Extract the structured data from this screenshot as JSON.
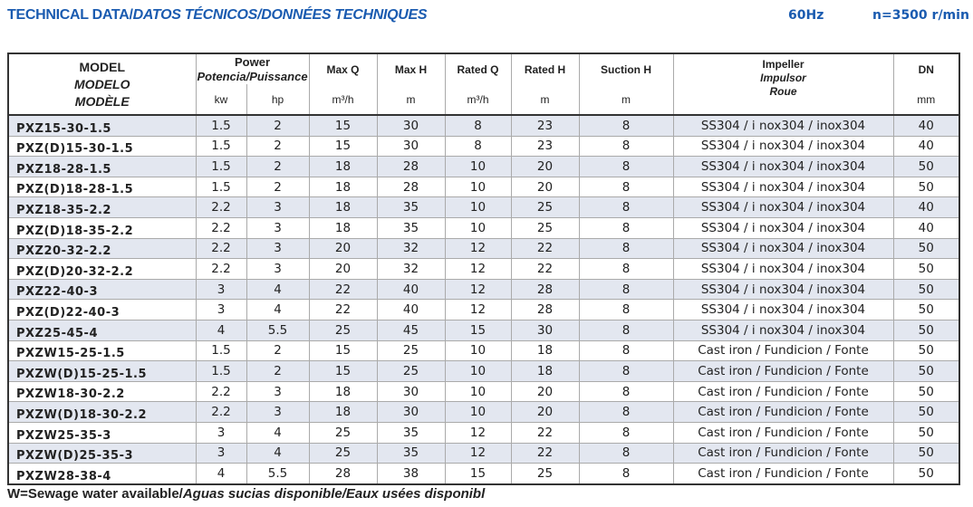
{
  "title": {
    "main": "TECHNICAL DATA/",
    "italic": "DATOS TÉCNICOS/DONNÉES TECHNIQUES"
  },
  "frequency": "60Hz",
  "speed": "n=3500 r/min",
  "headers": {
    "model": [
      "MODEL",
      "MODELO",
      "MODÈLE"
    ],
    "power": [
      "Power",
      "Potencia/Puissance"
    ],
    "kw": "kw",
    "hp": "hp",
    "max_q": "Max Q",
    "max_q_unit": "m³/h",
    "max_h": "Max H",
    "max_h_unit": "m",
    "rated_q": "Rated Q",
    "rated_q_unit": "m³/h",
    "rated_h": "Rated H",
    "rated_h_unit": "m",
    "suction_h": "Suction H",
    "suction_h_unit": "m",
    "impeller": [
      "Impeller",
      "Impulsor",
      "Roue"
    ],
    "dn": "DN",
    "dn_unit": "mm"
  },
  "rows": [
    [
      "PXZ15-30-1.5",
      "1.5",
      "2",
      "15",
      "30",
      "8",
      "23",
      "8",
      "SS304 / i nox304 / inox304",
      "40"
    ],
    [
      "PXZ(D)15-30-1.5",
      "1.5",
      "2",
      "15",
      "30",
      "8",
      "23",
      "8",
      "SS304 / i nox304 / inox304",
      "40"
    ],
    [
      "PXZ18-28-1.5",
      "1.5",
      "2",
      "18",
      "28",
      "10",
      "20",
      "8",
      "SS304 / i nox304 / inox304",
      "50"
    ],
    [
      "PXZ(D)18-28-1.5",
      "1.5",
      "2",
      "18",
      "28",
      "10",
      "20",
      "8",
      "SS304 / i nox304 / inox304",
      "50"
    ],
    [
      "PXZ18-35-2.2",
      "2.2",
      "3",
      "18",
      "35",
      "10",
      "25",
      "8",
      "SS304 / i nox304 / inox304",
      "40"
    ],
    [
      "PXZ(D)18-35-2.2",
      "2.2",
      "3",
      "18",
      "35",
      "10",
      "25",
      "8",
      "SS304 / i nox304 / inox304",
      "40"
    ],
    [
      "PXZ20-32-2.2",
      "2.2",
      "3",
      "20",
      "32",
      "12",
      "22",
      "8",
      "SS304 / i nox304 / inox304",
      "50"
    ],
    [
      "PXZ(D)20-32-2.2",
      "2.2",
      "3",
      "20",
      "32",
      "12",
      "22",
      "8",
      "SS304 / i nox304 / inox304",
      "50"
    ],
    [
      "PXZ22-40-3",
      "3",
      "4",
      "22",
      "40",
      "12",
      "28",
      "8",
      "SS304 / i nox304 / inox304",
      "50"
    ],
    [
      "PXZ(D)22-40-3",
      "3",
      "4",
      "22",
      "40",
      "12",
      "28",
      "8",
      "SS304 / i nox304 / inox304",
      "50"
    ],
    [
      "PXZ25-45-4",
      "4",
      "5.5",
      "25",
      "45",
      "15",
      "30",
      "8",
      "SS304 / i nox304 / inox304",
      "50"
    ],
    [
      "PXZW15-25-1.5",
      "1.5",
      "2",
      "15",
      "25",
      "10",
      "18",
      "8",
      "Cast iron / Fundicion / Fonte",
      "50"
    ],
    [
      "PXZW(D)15-25-1.5",
      "1.5",
      "2",
      "15",
      "25",
      "10",
      "18",
      "8",
      "Cast iron / Fundicion / Fonte",
      "50"
    ],
    [
      "PXZW18-30-2.2",
      "2.2",
      "3",
      "18",
      "30",
      "10",
      "20",
      "8",
      "Cast iron / Fundicion / Fonte",
      "50"
    ],
    [
      "PXZW(D)18-30-2.2",
      "2.2",
      "3",
      "18",
      "30",
      "10",
      "20",
      "8",
      "Cast iron / Fundicion / Fonte",
      "50"
    ],
    [
      "PXZW25-35-3",
      "3",
      "4",
      "25",
      "35",
      "12",
      "22",
      "8",
      "Cast iron / Fundicion / Fonte",
      "50"
    ],
    [
      "PXZW(D)25-35-3",
      "3",
      "4",
      "25",
      "35",
      "12",
      "22",
      "8",
      "Cast iron / Fundicion / Fonte",
      "50"
    ],
    [
      "PXZW28-38-4",
      "4",
      "5.5",
      "28",
      "38",
      "15",
      "25",
      "8",
      "Cast iron / Fundicion / Fonte",
      "50"
    ]
  ],
  "footnote": {
    "main": "W=Sewage water available/",
    "italic": "Aguas sucias disponible/Eaux usées disponibl"
  },
  "colors": {
    "title": "#1a5bb0",
    "row_shade": "#e3e7f0"
  }
}
